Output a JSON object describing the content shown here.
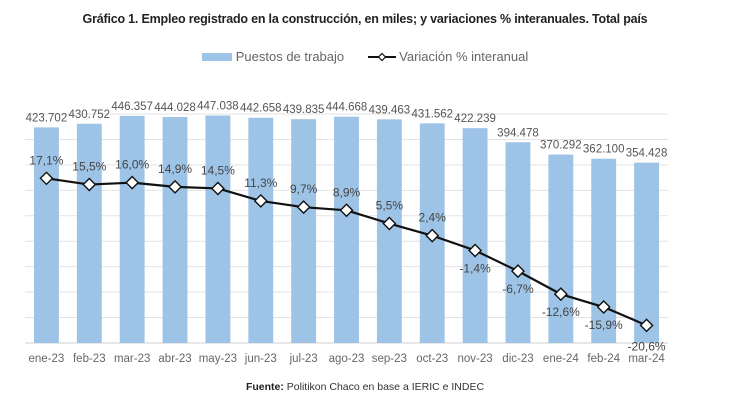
{
  "title": "Gráfico 1. Empleo registrado en la construcción, en miles; y variaciones % interanuales. Total país",
  "legend": {
    "bar_label": "Puestos de trabajo",
    "line_label": "Variación % interanual"
  },
  "source": {
    "prefix": "Fuente:",
    "text": "Politikon Chaco en base a IERIC e INDEC"
  },
  "colors": {
    "bar": "#9dc3e6",
    "line": "#111111",
    "grid": "#e3e3e3"
  },
  "chart_data": {
    "type": "bar",
    "title": "Gráfico 1. Empleo registrado en la construcción, en miles; y variaciones % interanuales. Total país",
    "xlabel": "",
    "ylabel": "",
    "grid": true,
    "legend_position": "top-center",
    "categories": [
      "ene-23",
      "feb-23",
      "mar-23",
      "abr-23",
      "may-23",
      "jun-23",
      "jul-23",
      "ago-23",
      "sep-23",
      "oct-23",
      "nov-23",
      "dic-23",
      "ene-24",
      "feb-24",
      "mar-24"
    ],
    "series": [
      {
        "name": "Puestos de trabajo",
        "type": "bar",
        "values": [
          423.702,
          430.752,
          446.357,
          444.028,
          447.038,
          442.658,
          439.835,
          444.668,
          439.463,
          431.562,
          422.239,
          394.478,
          370.292,
          362.1,
          354.428
        ],
        "labels": [
          "423.702",
          "430.752",
          "446.357",
          "444.028",
          "447.038",
          "442.658",
          "439.835",
          "444.668",
          "439.463",
          "431.562",
          "422.239",
          "394.478",
          "370.292",
          "362.100",
          "354.428"
        ]
      },
      {
        "name": "Variación % interanual",
        "type": "line",
        "values": [
          17.1,
          15.5,
          16.0,
          14.9,
          14.5,
          11.3,
          9.7,
          8.9,
          5.5,
          2.4,
          -1.4,
          -6.7,
          -12.6,
          -15.9,
          -20.6
        ],
        "labels": [
          "17,1%",
          "15,5%",
          "16,0%",
          "14,9%",
          "14,5%",
          "11,3%",
          "9,7%",
          "8,9%",
          "5,5%",
          "2,4%",
          "-1,4%",
          "-6,7%",
          "-12,6%",
          "-15,9%",
          "-20,6%"
        ]
      }
    ],
    "ylim": [
      0,
      450
    ],
    "y_grid_step": 50,
    "y2lim": [
      -25,
      20
    ]
  }
}
